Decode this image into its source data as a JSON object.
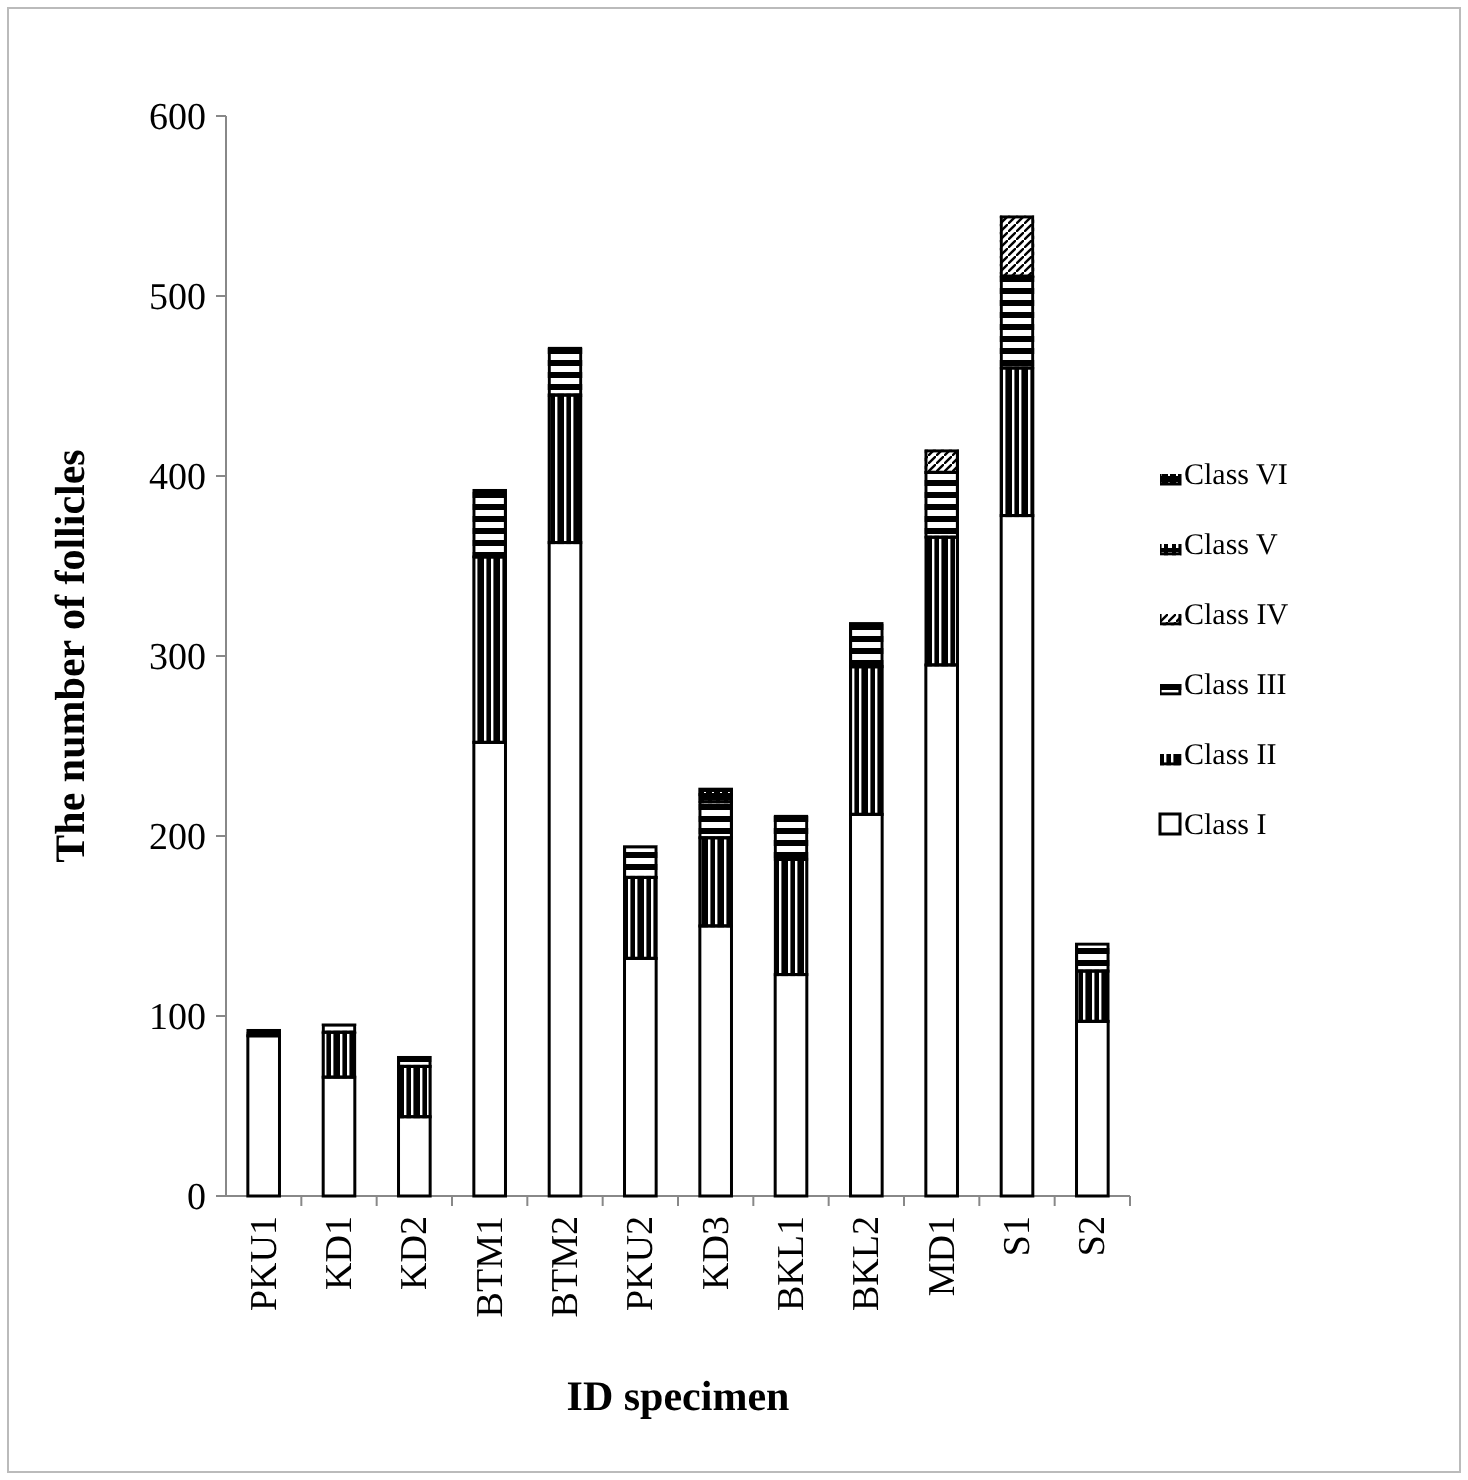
{
  "chart_data": {
    "type": "bar",
    "stacked": true,
    "xlabel": "ID specimen",
    "ylabel": "The number of follicles",
    "categories": [
      "PKU1",
      "KD1",
      "KD2",
      "BTM1",
      "BTM2",
      "PKU2",
      "KD3",
      "BKL1",
      "BKL2",
      "MD1",
      "S1",
      "S2"
    ],
    "ylim": [
      0,
      600
    ],
    "yticks": [
      0,
      100,
      200,
      300,
      400,
      500,
      600
    ],
    "legend": "right",
    "series": [
      {
        "name": "Class I",
        "color": "#ffffff",
        "values": [
          89,
          66,
          44,
          252,
          363,
          132,
          150,
          123,
          212,
          295,
          378,
          97
        ]
      },
      {
        "name": "Class II",
        "color": "#000000",
        "values": [
          null,
          25,
          28,
          103,
          82,
          45,
          49,
          64,
          82,
          71,
          82,
          28
        ]
      },
      {
        "name": "Class III",
        "color": "#000000",
        "values": [
          3,
          4,
          5,
          37,
          26,
          17,
          20,
          24,
          24,
          36,
          51,
          15
        ]
      },
      {
        "name": "Class IV",
        "color": "#000000",
        "values": [
          null,
          null,
          null,
          null,
          null,
          null,
          null,
          null,
          null,
          12,
          33,
          null
        ]
      },
      {
        "name": "Class V",
        "color": "#000000",
        "values": [
          null,
          null,
          null,
          null,
          null,
          null,
          4,
          null,
          null,
          null,
          null,
          null
        ]
      },
      {
        "name": "Class VI",
        "color": "#000000",
        "values": [
          null,
          null,
          null,
          null,
          null,
          null,
          3,
          null,
          null,
          null,
          null,
          null
        ]
      }
    ]
  }
}
